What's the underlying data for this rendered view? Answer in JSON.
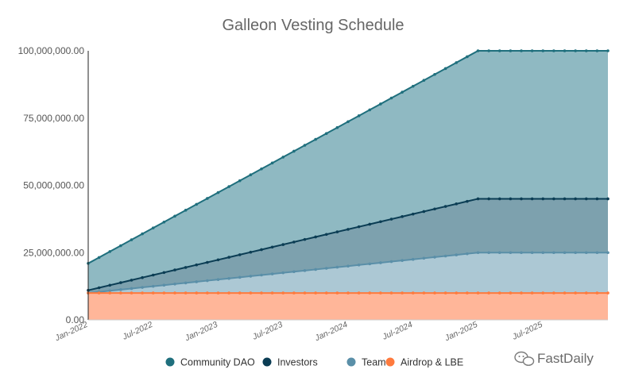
{
  "chart_data": {
    "type": "area",
    "stacked": true,
    "title": "Galleon Vesting Schedule",
    "xlabel": "",
    "ylabel": "",
    "x_start": "2022-01",
    "x_end": "2026-01",
    "x_ticks": [
      "Jan-2022",
      "Jul-2022",
      "Jan-2023",
      "Jul-2023",
      "Jan-2024",
      "Jul-2024",
      "Jan-2025",
      "Jul-2025"
    ],
    "ylim": [
      0,
      100000000
    ],
    "y_ticks": [
      "0.00",
      "25,000,000.00",
      "50,000,000.00",
      "75,000,000.00",
      "100,000,000.00"
    ],
    "grid": false,
    "legend_position": "bottom",
    "series": [
      {
        "name": "Community DAO",
        "color": "#1f6f7d",
        "fill": "#8fb9c2",
        "start_total": 21000000,
        "end_total": 100000000,
        "end_month": 36
      },
      {
        "name": "Investors",
        "color": "#0b3d54",
        "fill": "#7da1ae",
        "start_total": 11000000,
        "end_total": 45000000,
        "end_month": 36
      },
      {
        "name": "Team",
        "color": "#5a8fa8",
        "fill": "#acc8d4",
        "start_total": 10000000,
        "end_total": 25000000,
        "end_month": 36
      },
      {
        "name": "Airdrop & LBE",
        "color": "#ff7a3d",
        "fill": "#ffb699",
        "start_total": 10000000,
        "end_total": 10000000,
        "end_month": 36
      }
    ]
  },
  "watermark": "FastDaily"
}
